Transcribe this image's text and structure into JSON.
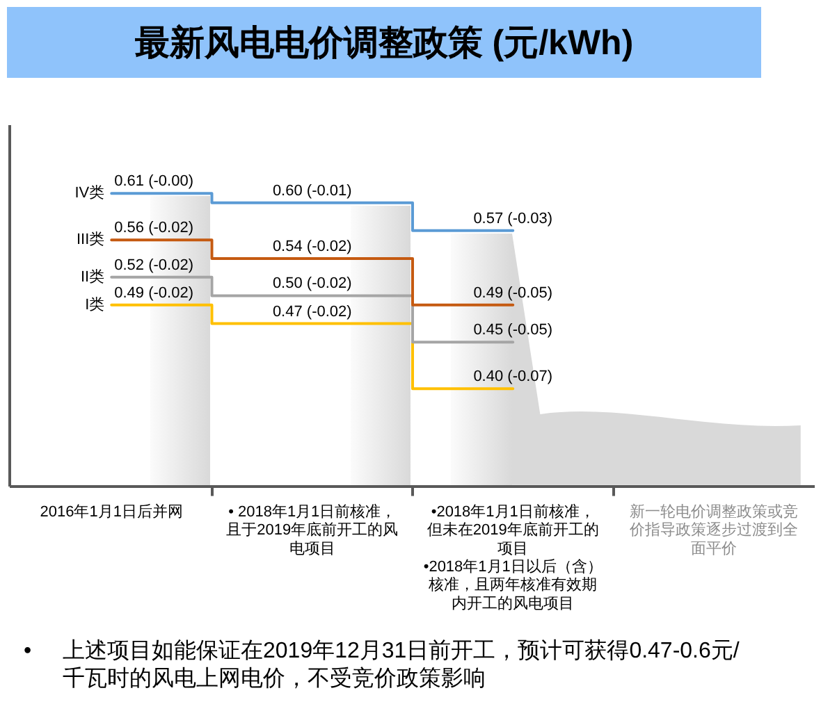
{
  "chart_data": {
    "type": "step",
    "title": "最新风电电价调整政策 (元/kWh)",
    "categories": [
      "2016年1月1日后并网",
      "• 2018年1月1日前核准，且于2019年底前开工的风电项目",
      "•2018年1月1日前核准，但未在2019年底前开工的项目\n•2018年1月1日以后（含）核准，且两年核准有效期内开工的风电项目",
      "新一轮电价调整政策或竞价指导政策逐步过渡到全面平价"
    ],
    "series": [
      {
        "name": "IV类",
        "color": "#5b9bd5",
        "values": [
          0.61,
          0.6,
          0.57,
          null
        ],
        "value_labels": [
          "0.61 (-0.00)",
          "0.60 (-0.01)",
          "0.57 (-0.03)",
          null
        ]
      },
      {
        "name": "III类",
        "color": "#c55a11",
        "values": [
          0.56,
          0.54,
          0.49,
          null
        ],
        "value_labels": [
          "0.56 (-0.02)",
          "0.54 (-0.02)",
          "0.49 (-0.05)",
          null
        ]
      },
      {
        "name": "II类",
        "color": "#a5a5a5",
        "values": [
          0.52,
          0.5,
          0.45,
          null
        ],
        "value_labels": [
          "0.52 (-0.02)",
          "0.50 (-0.02)",
          "0.45 (-0.05)",
          null
        ]
      },
      {
        "name": "I类",
        "color": "#ffc000",
        "values": [
          0.49,
          0.47,
          0.4,
          null
        ],
        "value_labels": [
          "0.49 (-0.02)",
          "0.47 (-0.02)",
          "0.40 (-0.07)",
          null
        ]
      }
    ],
    "tick_labels": "x",
    "annotations": [
      "• 上述项目如能保证在2019年12月31日前开工，预计可获得0.47-0.6元/千瓦时的风电上网电价，不受竞价政策影响"
    ]
  }
}
